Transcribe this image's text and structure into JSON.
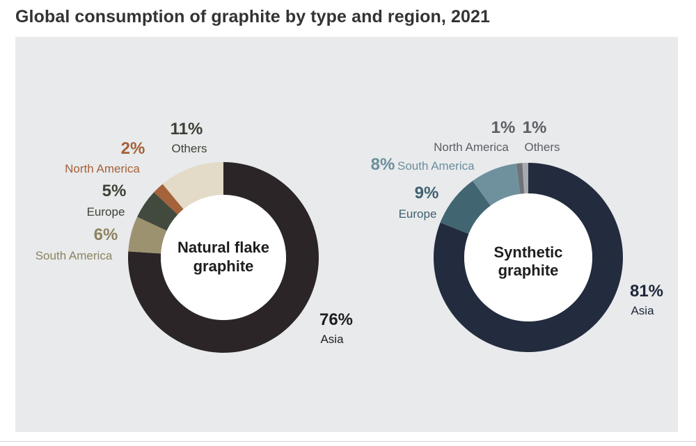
{
  "title": "Global consumption of graphite by type and region, 2021",
  "chart_data": [
    {
      "type": "pie",
      "center_label": [
        "Natural flake",
        "graphite"
      ],
      "categories": [
        "Asia",
        "South America",
        "Europe",
        "North America",
        "Others"
      ],
      "values": [
        76,
        6,
        5,
        2,
        11
      ],
      "value_labels": [
        "76%",
        "6%",
        "5%",
        "2%",
        "11%"
      ],
      "colors": [
        "#2b2528",
        "#9c9270",
        "#424a3d",
        "#a4633b",
        "#e3dac7"
      ],
      "label_colors": [
        "#1e1e1e",
        "#8d835f",
        "#3b4236",
        "#a65f37",
        "#3b4236"
      ]
    },
    {
      "type": "pie",
      "center_label": [
        "Synthetic",
        "graphite"
      ],
      "categories": [
        "Asia",
        "Europe",
        "South America",
        "North America",
        "Others"
      ],
      "values": [
        81,
        9,
        8,
        1,
        1
      ],
      "value_labels": [
        "81%",
        "9%",
        "8%",
        "1%",
        "1%"
      ],
      "colors": [
        "#232c3e",
        "#426572",
        "#6f919d",
        "#6f7277",
        "#a7abaf"
      ],
      "label_colors": [
        "#1e2638",
        "#3f616e",
        "#6b8f9c",
        "#5b5e63",
        "#5b5e63"
      ]
    }
  ]
}
